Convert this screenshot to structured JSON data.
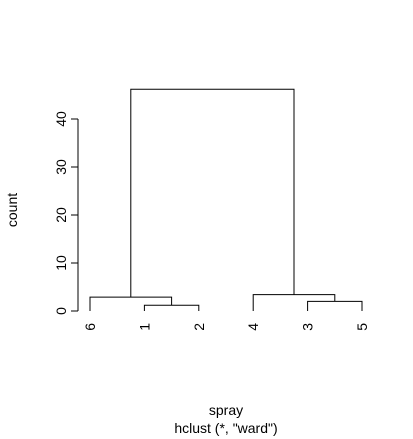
{
  "chart_data": {
    "type": "dendrogram",
    "title": "",
    "ylabel": "count",
    "xlabel": "spray",
    "subtitle": "hclust (*, \"ward\")",
    "ylim": [
      0,
      48
    ],
    "yticks": [
      0,
      10,
      20,
      30,
      40
    ],
    "leaves": [
      "6",
      "1",
      "2",
      "4",
      "3",
      "5"
    ],
    "merges": [
      {
        "left": "leaf:1",
        "right": "leaf:2",
        "height": 1.2
      },
      {
        "left": "leaf:3",
        "right": "leaf:5",
        "height": 2.0
      },
      {
        "left": "leaf:6",
        "right": "merge:0",
        "height": 2.9
      },
      {
        "left": "leaf:4",
        "right": "merge:1",
        "height": 3.4
      },
      {
        "left": "merge:2",
        "right": "merge:3",
        "height": 46.2
      }
    ]
  }
}
